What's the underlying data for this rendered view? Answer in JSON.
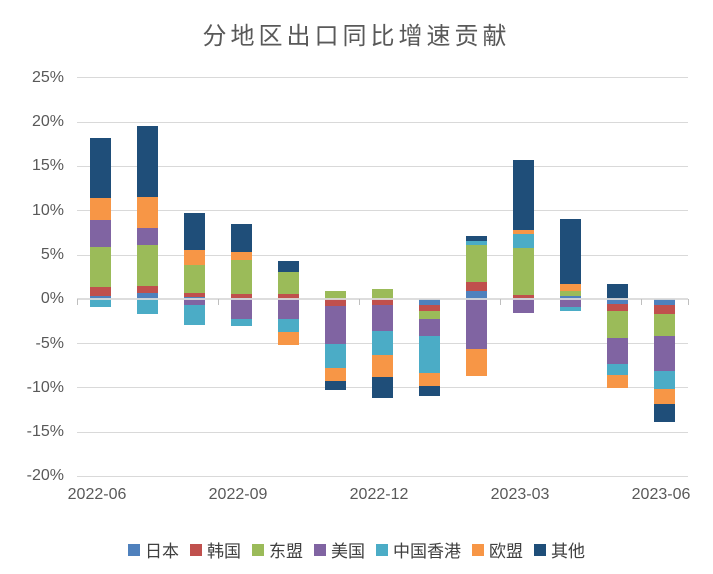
{
  "chart_data": {
    "type": "bar",
    "stacked": true,
    "title": "分地区出口同比增速贡献",
    "unit": "%",
    "grid": true,
    "legend_position": "bottom",
    "ylim": [
      -20,
      25
    ],
    "y_ticks": [
      25,
      20,
      15,
      10,
      5,
      0,
      -5,
      -10,
      -15,
      -20
    ],
    "y_tick_labels": [
      "25%",
      "20%",
      "15%",
      "10%",
      "5%",
      "0%",
      "-5%",
      "-10%",
      "-15%",
      "-20%"
    ],
    "categories": [
      "2022-06",
      "2022-07",
      "2022-08",
      "2022-09",
      "2022-10",
      "2022-11",
      "2022-12",
      "2023-01",
      "2023-02",
      "2023-03",
      "2023-04",
      "2023-05",
      "2023-06"
    ],
    "x_tick_indices": [
      0,
      3,
      6,
      9,
      12
    ],
    "x_tick_labels": [
      "2022-06",
      "2022-09",
      "2022-12",
      "2023-03",
      "2023-06"
    ],
    "series": [
      {
        "name": "日本",
        "color": "#4F81BD",
        "values": [
          0.4,
          0.7,
          0.3,
          0.2,
          0.05,
          0.0,
          0.0,
          -0.65,
          0.9,
          0.1,
          0.4,
          -0.55,
          -0.7
        ]
      },
      {
        "name": "韩国",
        "color": "#C0504D",
        "values": [
          0.95,
          0.85,
          0.4,
          0.45,
          0.5,
          -0.8,
          -0.6,
          -0.65,
          1.0,
          0.4,
          0.0,
          -0.8,
          -0.95
        ]
      },
      {
        "name": "东盟",
        "color": "#9BBB59",
        "values": [
          4.6,
          4.55,
          3.2,
          3.8,
          2.55,
          0.95,
          1.15,
          -0.95,
          4.25,
          5.3,
          0.5,
          -3.0,
          -2.55
        ]
      },
      {
        "name": "美国",
        "color": "#8064A2",
        "values": [
          3.0,
          2.0,
          -0.6,
          -2.2,
          -2.25,
          -4.2,
          -3.0,
          -1.85,
          -5.65,
          -1.6,
          -0.85,
          -3.0,
          -3.95
        ]
      },
      {
        "name": "中国香港",
        "color": "#4BACC6",
        "values": [
          -0.9,
          -1.7,
          -2.3,
          -0.8,
          -1.45,
          -2.8,
          -2.7,
          -4.25,
          0.45,
          1.6,
          -0.5,
          -1.2,
          -1.95
        ]
      },
      {
        "name": "欧盟",
        "color": "#F79646",
        "values": [
          2.45,
          3.5,
          1.7,
          0.9,
          -1.45,
          -1.4,
          -2.45,
          -1.4,
          -3.05,
          0.45,
          0.85,
          -1.5,
          -1.7
        ]
      },
      {
        "name": "其他",
        "color": "#1F4E79",
        "values": [
          6.8,
          8.0,
          4.2,
          3.2,
          1.2,
          -1.05,
          -2.4,
          -1.15,
          0.5,
          7.85,
          7.35,
          1.7,
          -2.05
        ]
      }
    ]
  }
}
